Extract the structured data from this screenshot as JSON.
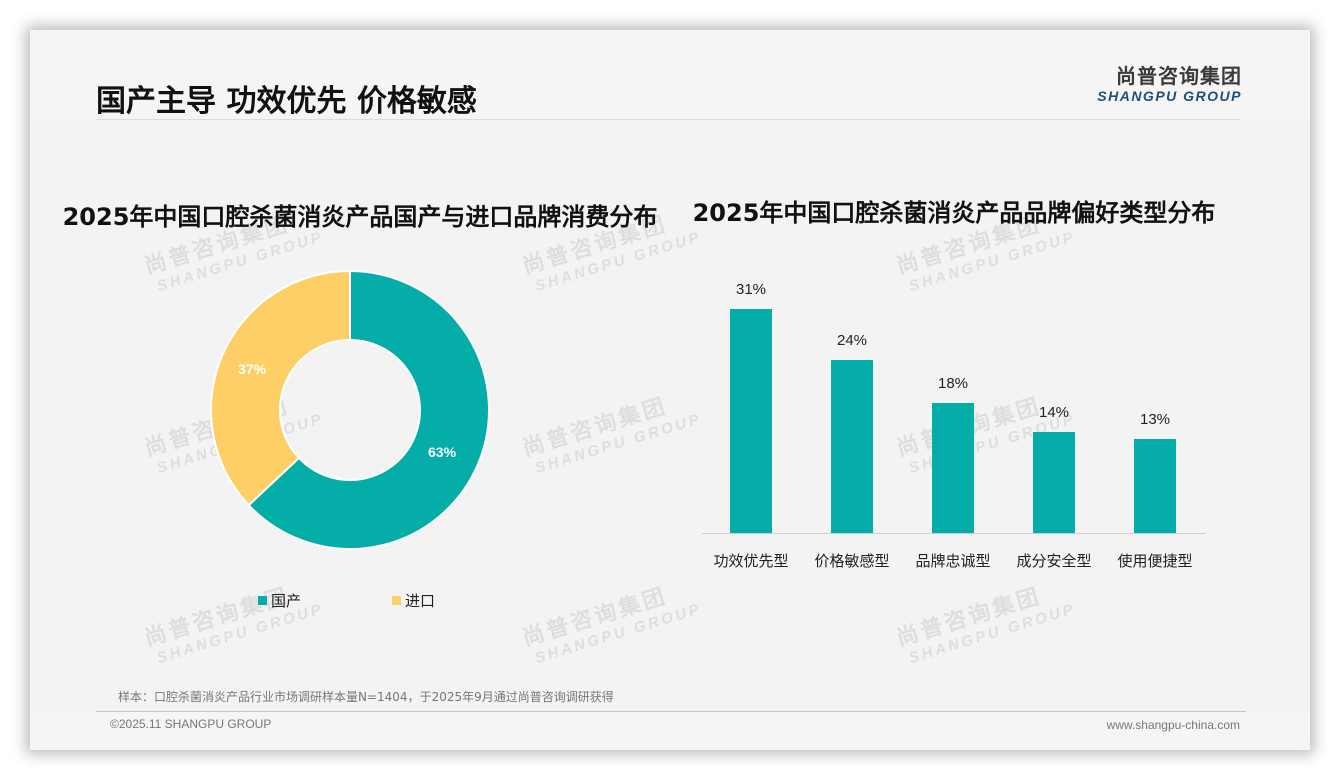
{
  "header": {
    "title": "国产主导 功效优先 价格敏感",
    "logo_cn": "尚普咨询集团",
    "logo_en": "SHANGPU GROUP"
  },
  "watermark": {
    "cn": "尚普咨询集团",
    "en": "SHANGPU GROUP"
  },
  "colors": {
    "teal": "#05ada8",
    "yellow": "#fdcf66",
    "logo_blue": "#1f4e79"
  },
  "donut": {
    "title": "2025年中国口腔杀菌消炎产品国产与进口品牌消费分布",
    "segments": [
      {
        "label": "国产",
        "value": 63,
        "display": "63%"
      },
      {
        "label": "进口",
        "value": 37,
        "display": "37%"
      }
    ]
  },
  "bars": {
    "title": "2025年中国口腔杀菌消炎产品品牌偏好类型分布",
    "items": [
      {
        "label": "功效优先型",
        "value": 31,
        "display": "31%"
      },
      {
        "label": "价格敏感型",
        "value": 24,
        "display": "24%"
      },
      {
        "label": "品牌忠诚型",
        "value": 18,
        "display": "18%"
      },
      {
        "label": "成分安全型",
        "value": 14,
        "display": "14%"
      },
      {
        "label": "使用便捷型",
        "value": 13,
        "display": "13%"
      }
    ]
  },
  "chart_data": [
    {
      "type": "pie",
      "title": "2025年中国口腔杀菌消炎产品国产与进口品牌消费分布",
      "categories": [
        "国产",
        "进口"
      ],
      "values": [
        63,
        37
      ],
      "unit": "%",
      "donut": true,
      "legend_position": "bottom",
      "colors": [
        "#05ada8",
        "#fdcf66"
      ]
    },
    {
      "type": "bar",
      "title": "2025年中国口腔杀菌消炎产品品牌偏好类型分布",
      "categories": [
        "功效优先型",
        "价格敏感型",
        "品牌忠诚型",
        "成分安全型",
        "使用便捷型"
      ],
      "values": [
        31,
        24,
        18,
        14,
        13
      ],
      "unit": "%",
      "xlabel": "",
      "ylabel": "",
      "grid": false,
      "data_labels": true,
      "colors": [
        "#05ada8"
      ]
    }
  ],
  "footer": {
    "note": "样本：口腔杀菌消炎产品行业市场调研样本量N=1404，于2025年9月通过尚普咨询调研获得",
    "copyright": "©2025.11 SHANGPU GROUP",
    "website": "www.shangpu-china.com"
  }
}
